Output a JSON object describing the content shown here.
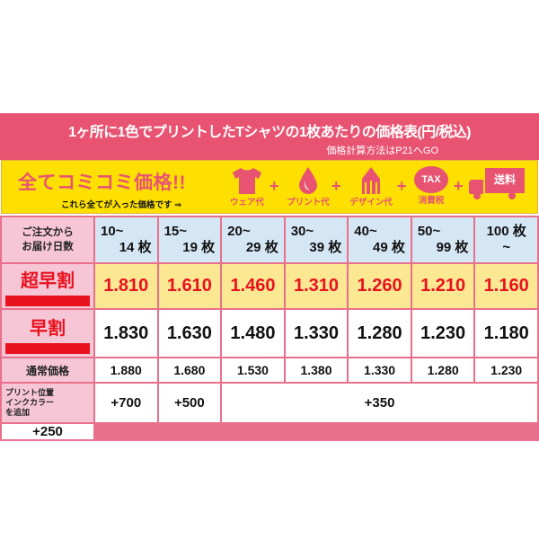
{
  "header": {
    "title": "1ヶ所に1色でプリントしたTシャツの1枚あたりの価格表(円/税込)",
    "subtitle": "価格計算方法はP21へGO"
  },
  "banner": {
    "headline": "全てコミコミ価格!!",
    "note": "これら全てが入った価格です ⇒",
    "items": [
      {
        "icon": "tshirt-icon",
        "label": "ウェア代"
      },
      {
        "icon": "ink-drop-icon",
        "label": "プリント代"
      },
      {
        "icon": "pencil-icon",
        "label": "デザイン代"
      },
      {
        "icon": "piggy-bank-icon",
        "label": "消費税",
        "badge": "TAX"
      },
      {
        "icon": "truck-icon",
        "label": "",
        "badge": "送料"
      }
    ],
    "plus": "+"
  },
  "colors": {
    "header": "#e85372",
    "banner": "#fde000",
    "super_early_bg": "#fce793",
    "accent_red": "#e8121e",
    "label_bg": "#f7c6d6",
    "qty_bg": "#d5e6f5"
  },
  "table": {
    "corner": [
      "ご注文から",
      "お届け日数"
    ],
    "quantities": [
      [
        "10~",
        "14 枚"
      ],
      [
        "15~",
        "19 枚"
      ],
      [
        "20~",
        "29 枚"
      ],
      [
        "30~",
        "39 枚"
      ],
      [
        "40~",
        "49 枚"
      ],
      [
        "50~",
        "99 枚"
      ],
      [
        "100 枚",
        "~"
      ]
    ],
    "super_early": {
      "label": "超早割",
      "prices": [
        "1.810",
        "1.610",
        "1.460",
        "1.310",
        "1.260",
        "1.210",
        "1.160"
      ]
    },
    "early": {
      "label": "早割",
      "prices": [
        "1.830",
        "1.630",
        "1.480",
        "1.330",
        "1.280",
        "1.230",
        "1.180"
      ]
    },
    "normal": {
      "label": "通常価格",
      "prices": [
        "1.880",
        "1.680",
        "1.530",
        "1.380",
        "1.330",
        "1.280",
        "1.230"
      ]
    },
    "addon": {
      "label1": "プリント位置",
      "label2": "インクカラー",
      "label3": "を追加",
      "values": [
        "+700",
        "+500",
        "+350",
        "+250"
      ]
    }
  }
}
